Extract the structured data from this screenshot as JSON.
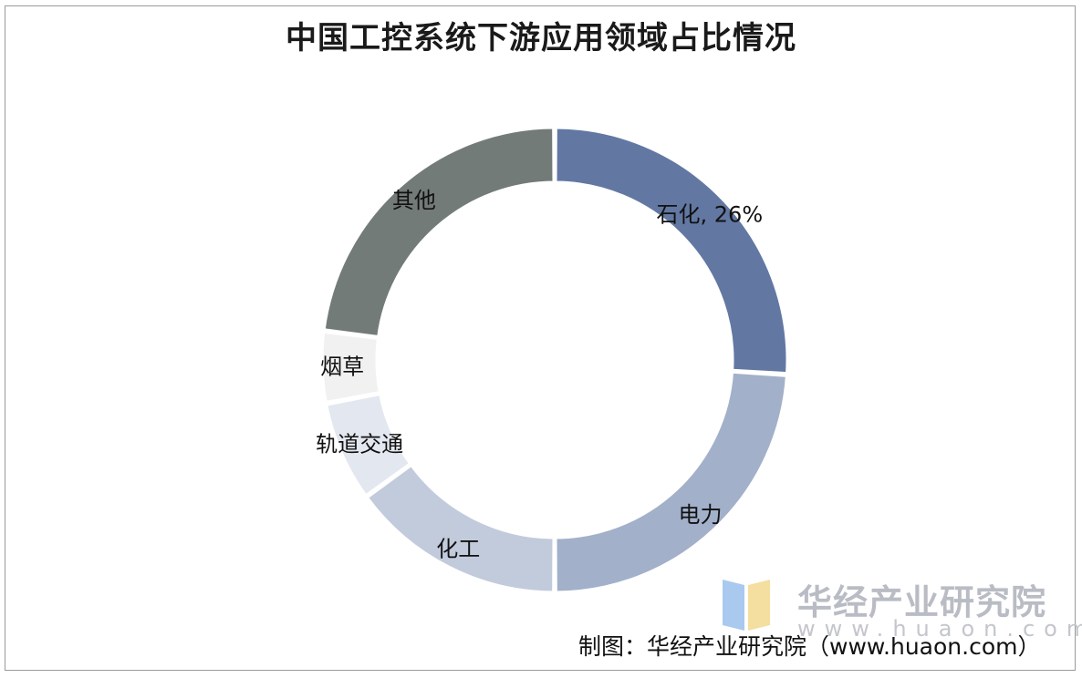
{
  "title": "中国工控系统下游应用领域占比情况",
  "chart_data": {
    "type": "pie",
    "donut": true,
    "title": "中国工控系统下游应用领域占比情况",
    "slices": [
      {
        "label": "石化, 26%",
        "category": "石化",
        "value": 26,
        "color": "#6278a3"
      },
      {
        "label": "电力",
        "category": "电力",
        "value": 24,
        "color": "#a2b0ca"
      },
      {
        "label": "化工",
        "category": "化工",
        "value": 15,
        "color": "#c2cbdc"
      },
      {
        "label": "轨道交通",
        "category": "轨道交通",
        "value": 7,
        "color": "#e3e7ef"
      },
      {
        "label": "烟草",
        "category": "烟草",
        "value": 5,
        "color": "#f1f1f1"
      },
      {
        "label": "其他",
        "category": "其他",
        "value": 23,
        "color": "#737b78"
      }
    ]
  },
  "watermark": {
    "name": "华经产业研究院",
    "url": "www.huaon.com"
  },
  "source": "制图：华经产业研究院（www.huaon.com）"
}
